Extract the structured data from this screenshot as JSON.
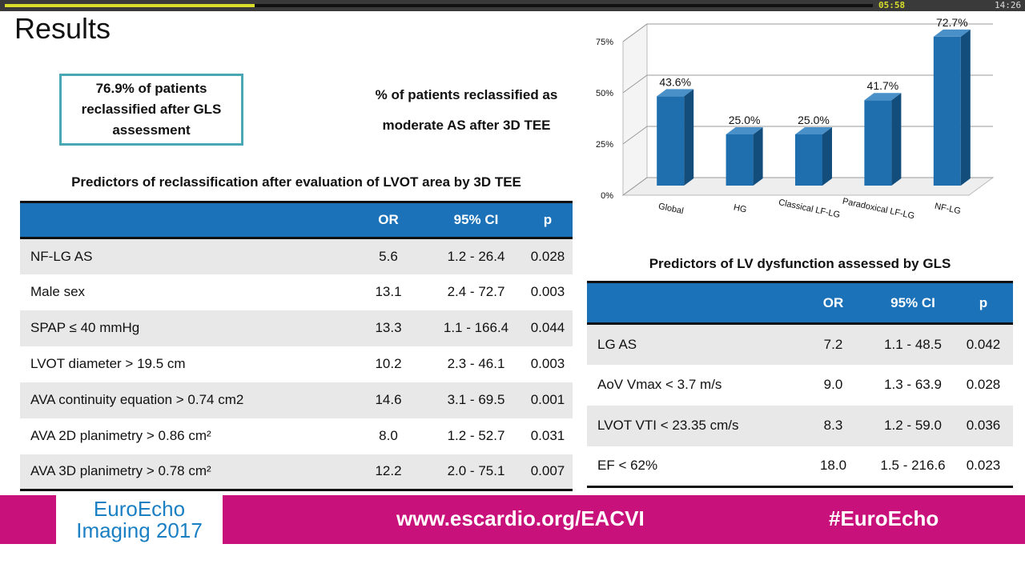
{
  "player": {
    "elapsed": "05:58",
    "duration": "14:26",
    "progress": 0.288
  },
  "slide": {
    "title": "Results",
    "callout": "76.9% of patients reclassified after GLS assessment",
    "chart_caption_line1": "% of patients reclassified as",
    "chart_caption_line2": "moderate AS after 3D TEE"
  },
  "table1": {
    "title": "Predictors of reclassification after evaluation of LVOT area by 3D TEE",
    "headers": [
      "",
      "OR",
      "95% CI",
      "p"
    ],
    "rows": [
      [
        "NF-LG AS",
        "5.6",
        "1.2 - 26.4",
        "0.028"
      ],
      [
        "Male sex",
        "13.1",
        "2.4 - 72.7",
        "0.003"
      ],
      [
        "SPAP ≤ 40 mmHg",
        "13.3",
        "1.1 - 166.4",
        "0.044"
      ],
      [
        "LVOT diameter > 19.5 cm",
        "10.2",
        "2.3 - 46.1",
        "0.003"
      ],
      [
        "AVA continuity equation > 0.74 cm2",
        "14.6",
        "3.1 - 69.5",
        "0.001"
      ],
      [
        "AVA 2D planimetry > 0.86 cm²",
        "8.0",
        "1.2 - 52.7",
        "0.031"
      ],
      [
        "AVA 3D planimetry > 0.78 cm²",
        "12.2",
        "2.0 - 75.1",
        "0.007"
      ]
    ]
  },
  "table2": {
    "title": "Predictors of LV dysfunction assessed by GLS",
    "headers": [
      "",
      "OR",
      "95% CI",
      "p"
    ],
    "rows": [
      [
        "LG AS",
        "7.2",
        "1.1 - 48.5",
        "0.042"
      ],
      [
        "AoV Vmax < 3.7 m/s",
        "9.0",
        "1.3 - 63.9",
        "0.028"
      ],
      [
        "LVOT VTI < 23.35 cm/s",
        "8.3",
        "1.2 - 59.0",
        "0.036"
      ],
      [
        "EF < 62%",
        "18.0",
        "1.5 - 216.6",
        "0.023"
      ]
    ]
  },
  "chart_data": {
    "type": "bar",
    "categories": [
      "Global",
      "HG",
      "Classical LF-LG",
      "Paradoxical LF-LG",
      "NF-LG"
    ],
    "values": [
      43.6,
      25.0,
      25.0,
      41.7,
      72.7
    ],
    "data_labels": [
      "43.6%",
      "25.0%",
      "25.0%",
      "41.7%",
      "72.7%"
    ],
    "ylim": [
      0,
      75
    ],
    "yticks": [
      0,
      25,
      50,
      75
    ],
    "ytick_labels": [
      "0%",
      "25%",
      "50%",
      "75%"
    ],
    "grid": true,
    "style": "3d",
    "bar_color": "#1f6fae"
  },
  "footer": {
    "logo_line1": "EuroEcho",
    "logo_line2": "Imaging 2017",
    "url": "www.escardio.org/EACVI",
    "hashtag": "#EuroEcho"
  }
}
